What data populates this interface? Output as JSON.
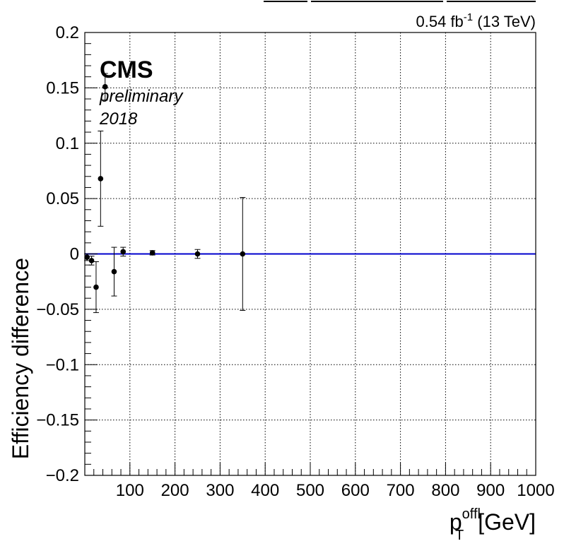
{
  "chart_data": {
    "type": "scatter",
    "xlabel_base": "p",
    "xlabel_sup": "offl",
    "xlabel_sub": "T",
    "xlabel_unit": "[GeV]",
    "ylabel": "Efficiency difference",
    "xlim": [
      0,
      1000
    ],
    "ylim": [
      -0.2,
      0.2
    ],
    "x_ticks": [
      100,
      200,
      300,
      400,
      500,
      600,
      700,
      800,
      900,
      1000
    ],
    "y_ticks": [
      -0.2,
      -0.15,
      -0.1,
      -0.05,
      0,
      0.05,
      0.1,
      0.15,
      0.2
    ],
    "x_tick_labels": [
      "100",
      "200",
      "300",
      "400",
      "500",
      "600",
      "700",
      "800",
      "900",
      "1000"
    ],
    "y_tick_labels": [
      "−0.2",
      "−0.15",
      "−0.1",
      "−0.05",
      "0",
      "0.05",
      "0.1",
      "0.15",
      "0.2"
    ],
    "grid": true,
    "reference_line": {
      "y": 0,
      "color": "#0000cc"
    },
    "points": [
      {
        "x": 5,
        "y": -0.003,
        "err": 0.003
      },
      {
        "x": 15,
        "y": -0.006,
        "err": 0.004
      },
      {
        "x": 25,
        "y": -0.03,
        "err": 0.023
      },
      {
        "x": 35,
        "y": 0.068,
        "err": 0.043
      },
      {
        "x": 45,
        "y": 0.151,
        "err": 0.012
      },
      {
        "x": 65,
        "y": -0.016,
        "err": 0.022
      },
      {
        "x": 85,
        "y": 0.002,
        "err": 0.004
      },
      {
        "x": 150,
        "y": 0.001,
        "err": 0.002
      },
      {
        "x": 250,
        "y": 0.0,
        "err": 0.004
      },
      {
        "x": 350,
        "y": 0.0,
        "err": 0.051
      }
    ],
    "point_color": "#000000",
    "lumi_text_main": "0.54 fb",
    "lumi_text_sup": "-1",
    "lumi_text_tail": " (13 TeV)",
    "experiment": "CMS",
    "status": "preliminary",
    "year": "2018"
  }
}
